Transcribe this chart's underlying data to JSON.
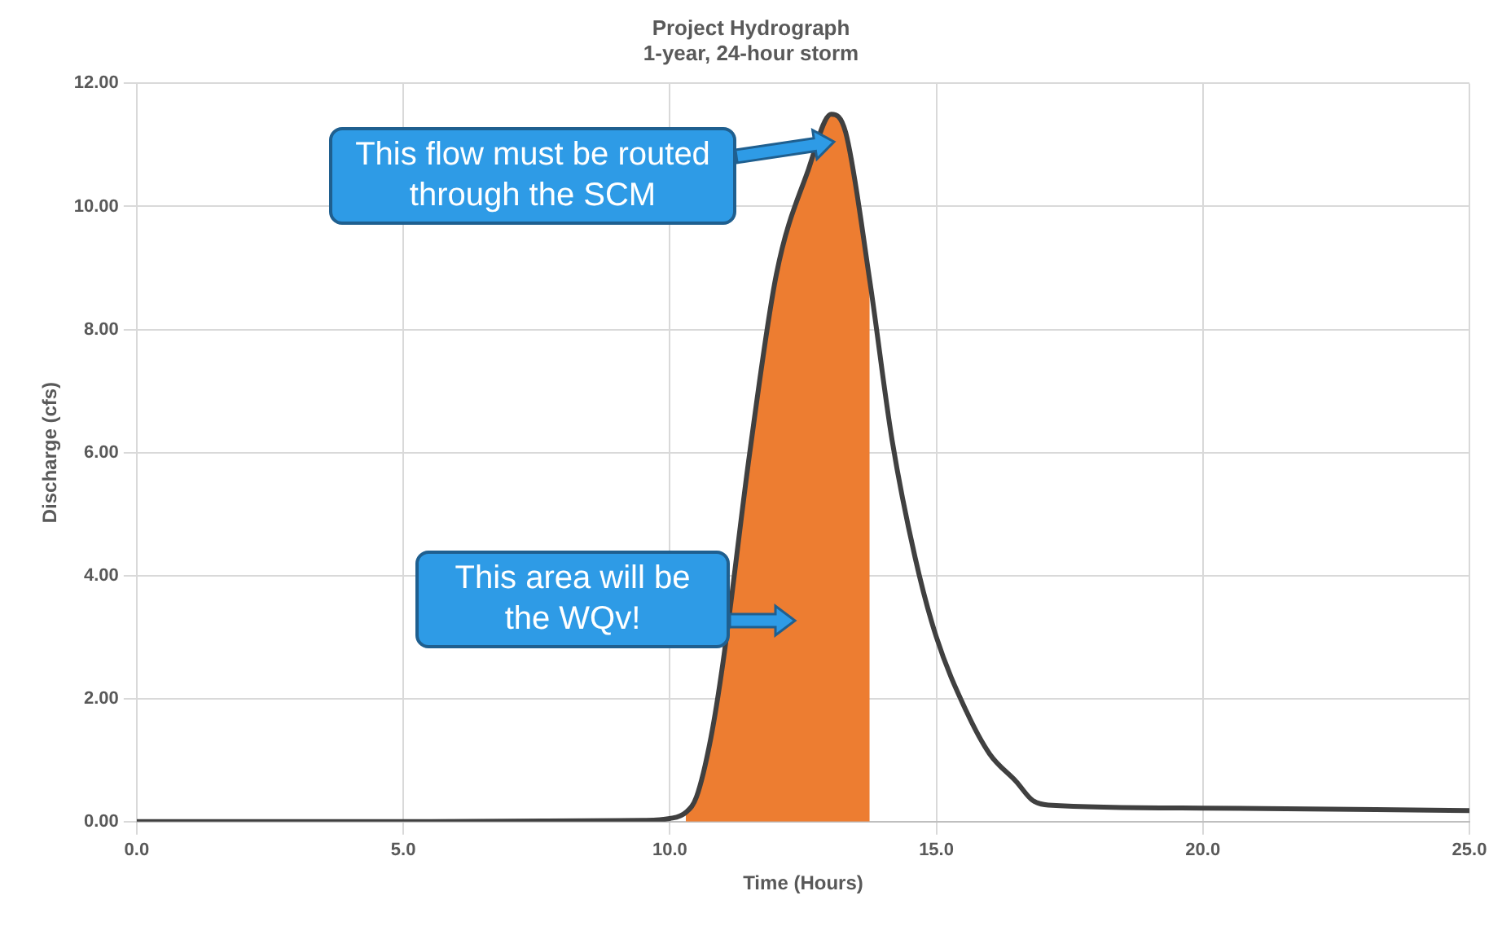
{
  "chart_data": {
    "type": "line",
    "title": "Project Hydrograph",
    "subtitle": "1-year, 24-hour storm",
    "xlabel": "Time (Hours)",
    "ylabel": "Discharge (cfs)",
    "x": [
      0,
      5,
      9.5,
      10,
      10.3,
      10.5,
      10.77,
      11,
      11.5,
      12,
      12.6,
      13.03,
      13.3,
      13.75,
      14.17,
      14.6,
      15,
      15.56,
      16,
      16.5,
      16.8,
      17.1,
      20,
      25
    ],
    "series": [
      {
        "type": "area",
        "color": "#ed7d31",
        "values": [
          null,
          null,
          null,
          null,
          0.15,
          0.4,
          1.36,
          2.6,
          6.0,
          8.9,
          10.6,
          11.5,
          11.2,
          8.8,
          null,
          null,
          null,
          null,
          null,
          null,
          null,
          null,
          null,
          null
        ]
      },
      {
        "type": "line",
        "color": "#404040",
        "values": [
          0,
          0,
          0.02,
          0.05,
          0.15,
          0.4,
          1.36,
          2.6,
          6.0,
          8.9,
          10.6,
          11.5,
          11.2,
          8.8,
          6.2,
          4.3,
          3.0,
          1.8,
          1.1,
          0.65,
          0.35,
          0.27,
          0.22,
          0.18
        ]
      }
    ],
    "xlim": [
      0,
      25
    ],
    "xticks": [
      {
        "value": 0,
        "label": "0.0"
      },
      {
        "value": 5,
        "label": "5.0"
      },
      {
        "value": 10,
        "label": "10.0"
      },
      {
        "value": 15,
        "label": "15.0"
      },
      {
        "value": 20,
        "label": "20.0"
      },
      {
        "value": 25,
        "label": "25.0"
      }
    ],
    "ylim": [
      0,
      12
    ],
    "yticks": [
      {
        "value": 0,
        "label": "0.00"
      },
      {
        "value": 2,
        "label": "2.00"
      },
      {
        "value": 4,
        "label": "4.00"
      },
      {
        "value": 6,
        "label": "6.00"
      },
      {
        "value": 8,
        "label": "8.00"
      },
      {
        "value": 10,
        "label": "10.00"
      },
      {
        "value": 12,
        "label": "12.00"
      }
    ],
    "grid": true,
    "legend": false,
    "marker": "none",
    "annotations": [
      "This flow must be routed through the SCM",
      "This area will be the WQv!"
    ]
  }
}
